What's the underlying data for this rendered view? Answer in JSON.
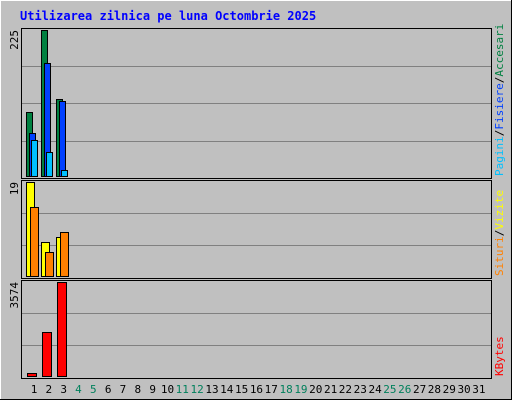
{
  "title": "Utilizarea zilnica pe luna Octombrie 2025",
  "colors": {
    "title": "#0000ff",
    "accesari": "#008040",
    "fisiere": "#0040ff",
    "pagini": "#00c0ff",
    "vizite": "#ffff00",
    "situri": "#ff8000",
    "kbytes": "#ff0000",
    "weekend_day": "#00805c",
    "normal_day": "#000000",
    "plot_bg": "#c0c0c0",
    "grid": "#808080"
  },
  "chart_data": {
    "type": "bar",
    "x": [
      "1",
      "2",
      "3",
      "4",
      "5",
      "6",
      "7",
      "8",
      "9",
      "10",
      "11",
      "12",
      "13",
      "14",
      "15",
      "16",
      "17",
      "18",
      "19",
      "20",
      "21",
      "22",
      "23",
      "24",
      "25",
      "26",
      "27",
      "28",
      "29",
      "30",
      "31"
    ],
    "weekend_days": [
      "4",
      "5",
      "11",
      "12",
      "18",
      "19",
      "25",
      "26"
    ],
    "panels": [
      {
        "id": "hits",
        "ymax_label": "225",
        "ymax": 225,
        "legend": [
          {
            "text": "Pagini",
            "color_key": "pagini"
          },
          {
            "text": "/",
            "color_key": "normal_day"
          },
          {
            "text": "Fisiere",
            "color_key": "fisiere"
          },
          {
            "text": "/",
            "color_key": "normal_day"
          },
          {
            "text": "Accesari",
            "color_key": "accesari"
          }
        ],
        "series": [
          {
            "name": "Accesari",
            "color_key": "accesari",
            "values": [
              100,
              225,
              120
            ]
          },
          {
            "name": "Fisiere",
            "color_key": "fisiere",
            "values": [
              68,
              175,
              117
            ]
          },
          {
            "name": "Pagini",
            "color_key": "pagini",
            "values": [
              57,
              38,
              11
            ]
          }
        ]
      },
      {
        "id": "visits",
        "ymax_label": "19",
        "ymax": 19,
        "legend": [
          {
            "text": "Situri",
            "color_key": "situri"
          },
          {
            "text": "/",
            "color_key": "normal_day"
          },
          {
            "text": "Vizite",
            "color_key": "vizite"
          }
        ],
        "series": [
          {
            "name": "Vizite",
            "color_key": "vizite",
            "values": [
              19,
              7,
              8
            ]
          },
          {
            "name": "Situri",
            "color_key": "situri",
            "values": [
              14,
              5,
              9
            ]
          }
        ]
      },
      {
        "id": "kbytes",
        "ymax_label": "3574",
        "ymax": 3574,
        "legend": [
          {
            "text": "KBytes",
            "color_key": "kbytes"
          }
        ],
        "series": [
          {
            "name": "KBytes",
            "color_key": "kbytes",
            "values": [
              144,
              1680,
              3574
            ]
          }
        ]
      }
    ]
  }
}
